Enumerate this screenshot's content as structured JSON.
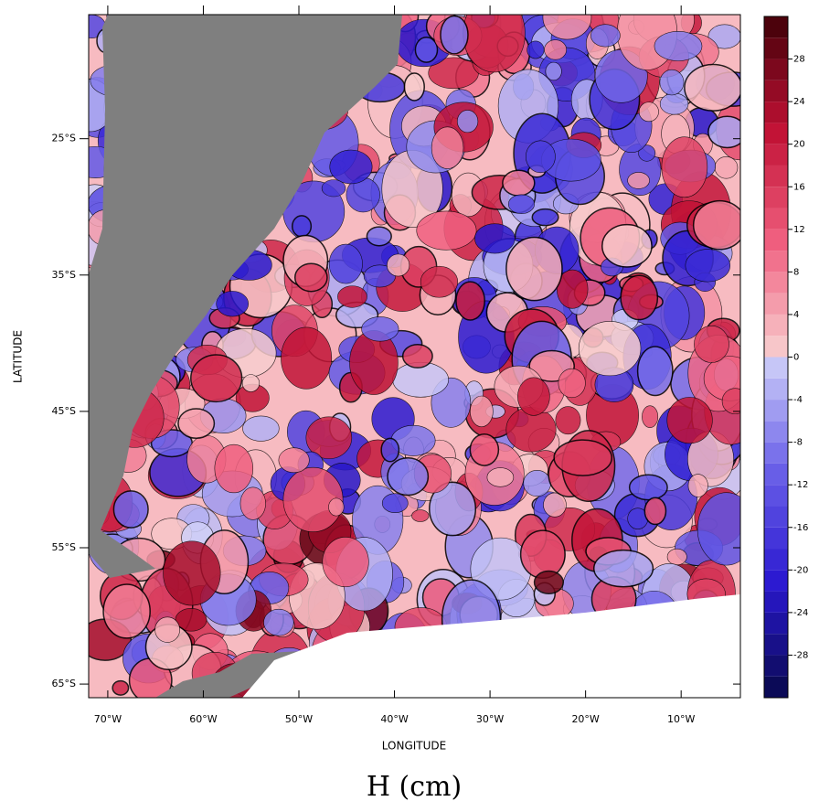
{
  "chart_data": {
    "type": "contour-map",
    "title": "H (cm)",
    "xlabel": "LONGITUDE",
    "ylabel": "LATITUDE",
    "xlim": [
      -72,
      -3.8
    ],
    "ylim": [
      -66,
      -15.9
    ],
    "xticks": [
      {
        "value": -70,
        "label": "70°W"
      },
      {
        "value": -60,
        "label": "60°W"
      },
      {
        "value": -50,
        "label": "50°W"
      },
      {
        "value": -40,
        "label": "40°W"
      },
      {
        "value": -30,
        "label": "30°W"
      },
      {
        "value": -20,
        "label": "20°W"
      },
      {
        "value": -10,
        "label": "10°W"
      }
    ],
    "yticks": [
      {
        "value": -25,
        "label": "25°S"
      },
      {
        "value": -35,
        "label": "35°S"
      },
      {
        "value": -45,
        "label": "45°S"
      },
      {
        "value": -55,
        "label": "55°S"
      },
      {
        "value": -65,
        "label": "65°S"
      }
    ],
    "colorbar": {
      "lim": [
        -32,
        32
      ],
      "step": 2,
      "ticks": [
        28,
        24,
        20,
        16,
        12,
        8,
        4,
        0,
        -4,
        -8,
        -12,
        -16,
        -20,
        -24,
        -28
      ],
      "negative_colors": [
        "#08084a",
        "#2a18d0",
        "#6a60e8",
        "#d0d0f8"
      ],
      "positive_colors": [
        "#f8d0d0",
        "#f06080",
        "#c01034",
        "#400008"
      ]
    },
    "land_color": "#7f7f7f"
  }
}
